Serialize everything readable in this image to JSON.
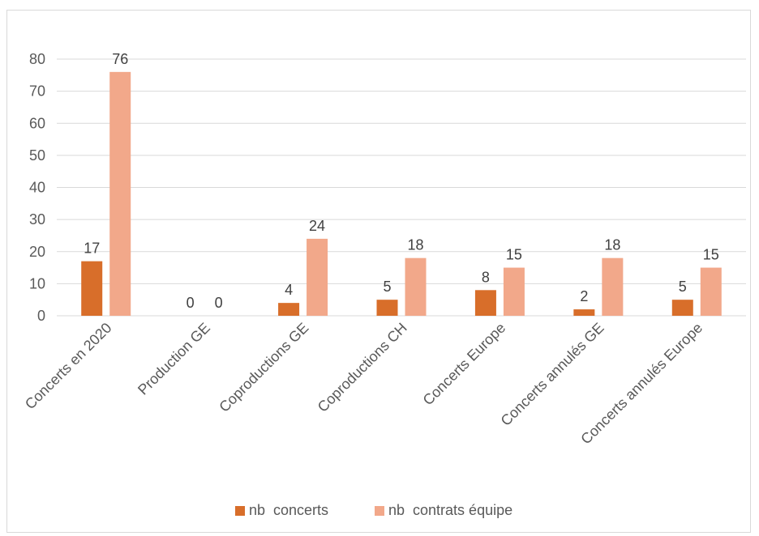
{
  "chart_data": {
    "type": "bar",
    "title": "",
    "xlabel": "",
    "ylabel": "",
    "categories": [
      "Concerts en 2020",
      "Production GE",
      "Coproductions GE",
      "Coproductions CH",
      "Concerts Europe",
      "Concerts annulés GE",
      "Concerts annulés Europe"
    ],
    "series": [
      {
        "name": "nb  concerts",
        "values": [
          17,
          0,
          4,
          5,
          8,
          2,
          5
        ],
        "color": "#d86e2a"
      },
      {
        "name": "nb  contrats équipe",
        "values": [
          76,
          0,
          24,
          18,
          15,
          18,
          15
        ],
        "color": "#f2a88a"
      }
    ],
    "ylim": [
      0,
      80
    ],
    "yticks": [
      0,
      10,
      20,
      30,
      40,
      50,
      60,
      70,
      80
    ],
    "grid": true,
    "data_labels": true,
    "legend_position": "bottom",
    "gridline_color": "#d9d9d9"
  }
}
